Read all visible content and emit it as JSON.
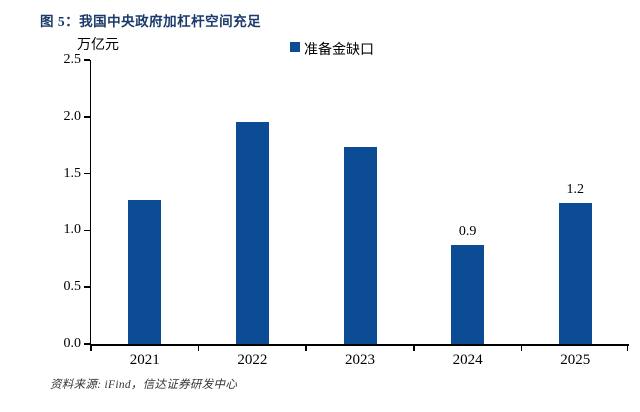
{
  "figure": {
    "title": "图 5：我国中央政府加杠杆空间充足",
    "source": "资料来源: iFind，信达证券研发中心"
  },
  "colors": {
    "bar": "#0C4C94",
    "title": "#1B3A6B",
    "axis": "#000000"
  },
  "chart_data": {
    "type": "bar",
    "title": "图 5：我国中央政府加杠杆空间充足",
    "ylabel": "万亿元",
    "xlabel": "",
    "legend": [
      "准备金缺口"
    ],
    "legend_position": "top-center",
    "categories": [
      "2021",
      "2022",
      "2023",
      "2024",
      "2025"
    ],
    "series": [
      {
        "name": "准备金缺口",
        "values": [
          1.27,
          1.95,
          1.73,
          0.87,
          1.24
        ]
      }
    ],
    "data_labels": [
      null,
      null,
      null,
      "0.9",
      "1.2"
    ],
    "ylim": [
      0,
      2.5
    ],
    "yticks": [
      0.0,
      0.5,
      1.0,
      1.5,
      2.0,
      2.5
    ],
    "ytick_labels": [
      "0.0",
      "0.5",
      "1.0",
      "1.5",
      "2.0",
      "2.5"
    ],
    "grid": false
  }
}
